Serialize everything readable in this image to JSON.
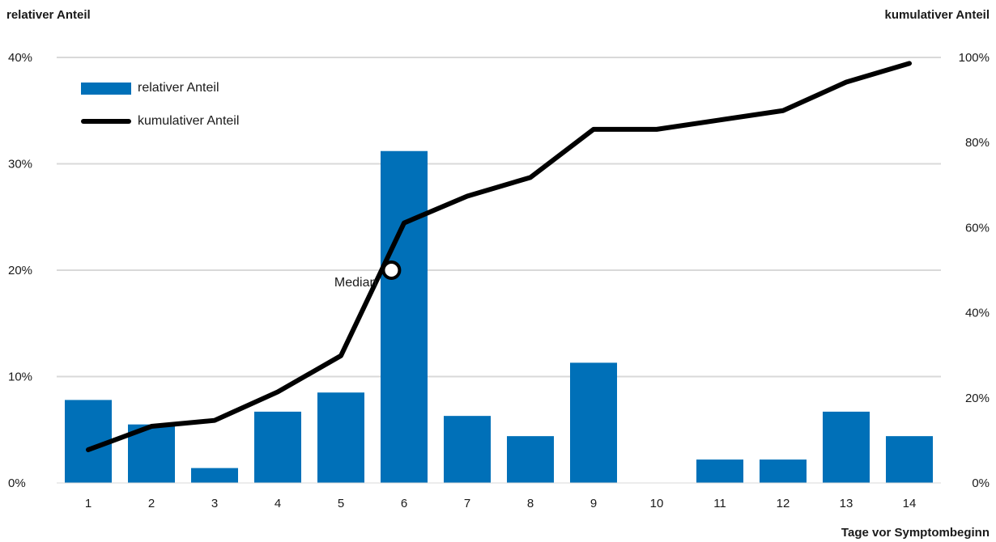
{
  "chart_data": {
    "type": "bar",
    "title": "",
    "xlabel": "Tage vor Symptombeginn",
    "ylabel_left": "relativer Anteil",
    "ylabel_right": "kumulativer Anteil",
    "categories": [
      "1",
      "2",
      "3",
      "4",
      "5",
      "6",
      "7",
      "8",
      "9",
      "10",
      "11",
      "12",
      "13",
      "14"
    ],
    "ylim_left": [
      0,
      40
    ],
    "ylim_right": [
      0,
      100
    ],
    "yticks_left": [
      "0%",
      "10%",
      "20%",
      "30%",
      "40%"
    ],
    "yticks_right": [
      "0%",
      "20%",
      "40%",
      "60%",
      "80%",
      "100%"
    ],
    "grid": true,
    "legend_position": "top-left",
    "series": [
      {
        "name": "relativer Anteil",
        "type": "bar",
        "axis": "left",
        "color": "#0070b8",
        "values": [
          7.8,
          5.5,
          1.4,
          6.7,
          8.5,
          31.2,
          6.3,
          4.4,
          11.3,
          0,
          2.2,
          2.2,
          6.7,
          4.4
        ]
      },
      {
        "name": "kumulativer Anteil",
        "type": "line",
        "axis": "right",
        "color": "#000000",
        "values": [
          7.8,
          13.3,
          14.7,
          21.4,
          29.9,
          61.1,
          67.4,
          71.8,
          83.1,
          83.1,
          85.3,
          87.5,
          94.2,
          98.6
        ]
      }
    ],
    "annotations": [
      {
        "text": "Median",
        "x": 5.8,
        "y_right": 50
      }
    ]
  }
}
